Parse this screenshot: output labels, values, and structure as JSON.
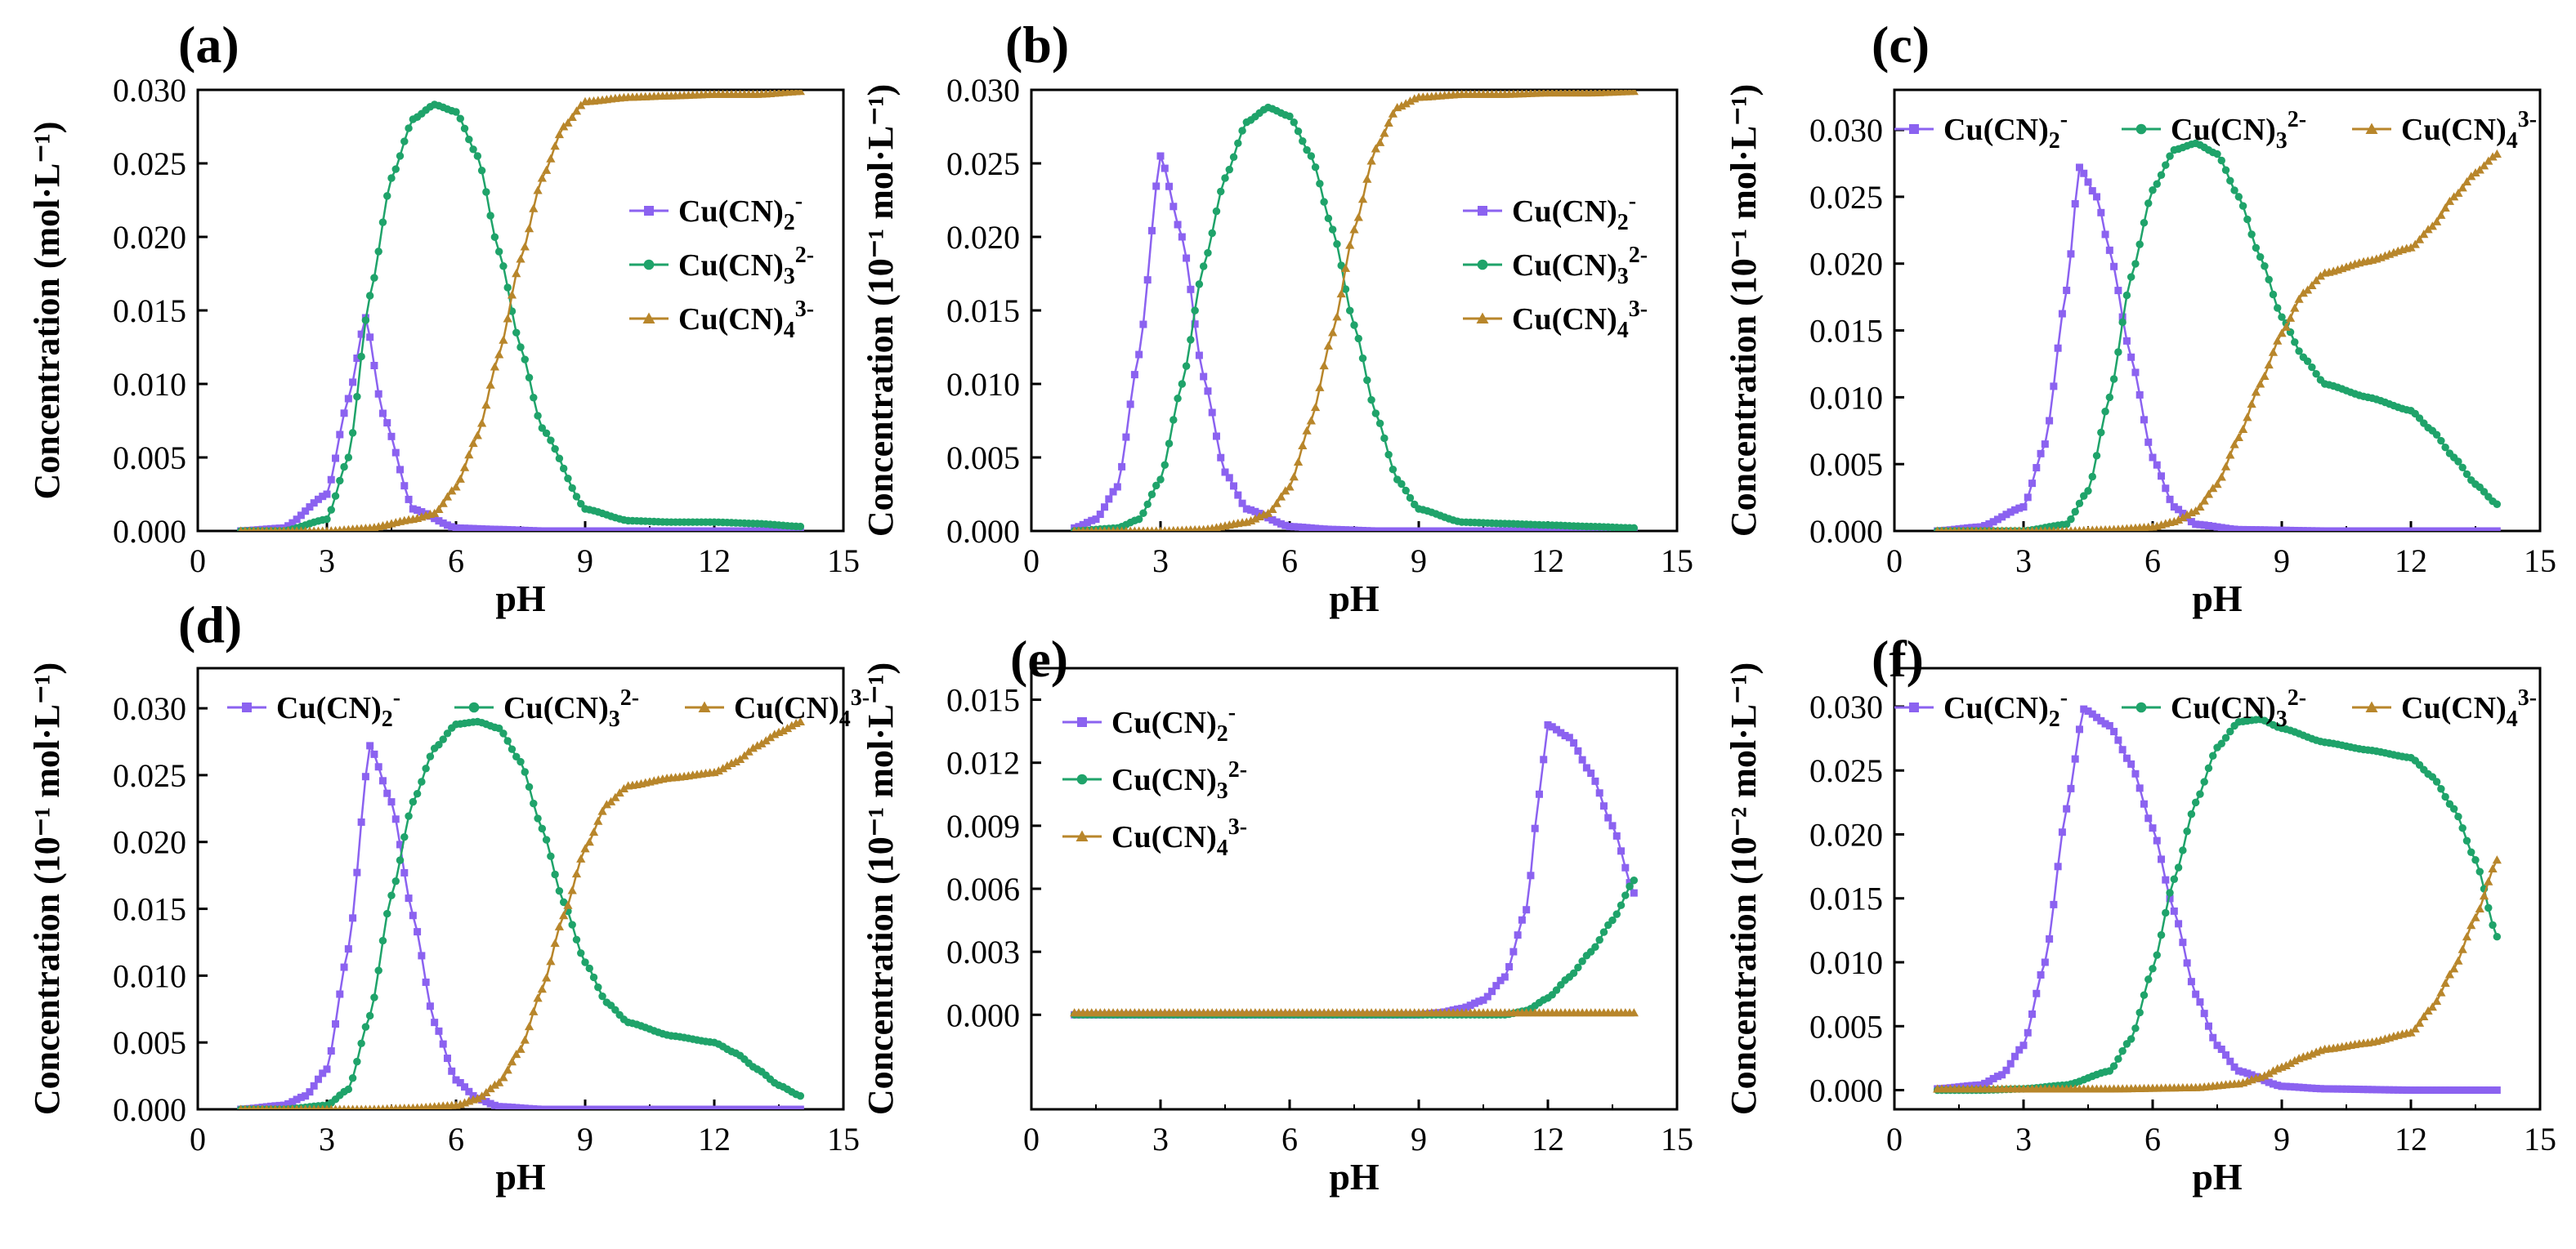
{
  "figure": {
    "xlabel": "pH",
    "x_ticks": [
      0,
      3,
      6,
      9,
      12,
      15
    ],
    "legend_labels": [
      {
        "base": "Cu(CN)",
        "sub": "2",
        "sup": "-"
      },
      {
        "base": "Cu(CN)",
        "sub": "3",
        "sup": "2-"
      },
      {
        "base": "Cu(CN)",
        "sub": "4",
        "sup": "3-"
      }
    ],
    "colors": {
      "cu2": "#8b62f0",
      "cu3": "#1fa36a",
      "cu4": "#b8862b"
    }
  },
  "chart_data": [
    {
      "type": "line",
      "panel_label": "(a)",
      "ylabel": "Concentration (mol·L⁻¹)",
      "xlim": [
        0,
        15
      ],
      "ylim": [
        0,
        0.03
      ],
      "y_ticks": [
        "0.000",
        "0.005",
        "0.010",
        "0.015",
        "0.020",
        "0.025",
        "0.030"
      ],
      "legend_position": "center-right",
      "series": [
        {
          "name": "Cu(CN)2-",
          "marker": "square",
          "x": [
            1,
            2,
            3,
            3.5,
            3.9,
            4.3,
            5,
            6,
            7,
            8,
            9,
            10,
            11,
            12,
            13,
            14
          ],
          "y": [
            0.0,
            0.0002,
            0.0025,
            0.009,
            0.0145,
            0.008,
            0.0015,
            0.0002,
            0.0001,
            0,
            0,
            0,
            0,
            0,
            0,
            0
          ]
        },
        {
          "name": "Cu(CN)3 2-",
          "marker": "circle",
          "x": [
            1,
            2,
            3,
            3.5,
            4,
            4.5,
            5,
            5.5,
            6,
            6.5,
            7,
            7.5,
            8,
            9,
            10,
            11,
            12,
            13,
            14
          ],
          "y": [
            0,
            0,
            0.0008,
            0.005,
            0.016,
            0.024,
            0.028,
            0.029,
            0.0285,
            0.0255,
            0.019,
            0.0125,
            0.007,
            0.0015,
            0.0007,
            0.0006,
            0.0006,
            0.0005,
            0.0003
          ]
        },
        {
          "name": "Cu(CN)4 3-",
          "marker": "triangle",
          "x": [
            1,
            2,
            3,
            4,
            5,
            5.5,
            6,
            6.5,
            7,
            7.5,
            8,
            8.5,
            9,
            10,
            11,
            12,
            13,
            14
          ],
          "y": [
            0,
            0,
            0,
            0.0002,
            0.0008,
            0.0012,
            0.003,
            0.0065,
            0.012,
            0.0185,
            0.024,
            0.0275,
            0.0292,
            0.0295,
            0.0296,
            0.0297,
            0.0297,
            0.0299
          ]
        }
      ]
    },
    {
      "type": "line",
      "panel_label": "(b)",
      "ylabel": "Concentration (10⁻¹ mol·L⁻¹)",
      "xlim": [
        0,
        15
      ],
      "ylim": [
        0,
        0.03
      ],
      "y_ticks": [
        "0.000",
        "0.005",
        "0.010",
        "0.015",
        "0.020",
        "0.025",
        "0.030"
      ],
      "legend_position": "center-right",
      "series": [
        {
          "name": "Cu(CN)2-",
          "marker": "square",
          "x": [
            1,
            1.5,
            2,
            2.5,
            3,
            3.5,
            4,
            4.5,
            5,
            6,
            7,
            8,
            10,
            12,
            14
          ],
          "y": [
            0.0002,
            0.0008,
            0.003,
            0.012,
            0.0255,
            0.02,
            0.0105,
            0.004,
            0.0015,
            0.0003,
            0.0001,
            0,
            0,
            0,
            0
          ]
        },
        {
          "name": "Cu(CN)3 2-",
          "marker": "circle",
          "x": [
            1,
            2,
            2.5,
            3,
            3.5,
            4,
            4.5,
            5,
            5.5,
            6,
            6.5,
            7,
            7.5,
            8,
            8.5,
            9,
            10,
            11,
            12,
            13,
            14
          ],
          "y": [
            0,
            0.0002,
            0.0008,
            0.0035,
            0.01,
            0.018,
            0.024,
            0.0278,
            0.0288,
            0.0282,
            0.0255,
            0.0205,
            0.014,
            0.008,
            0.0035,
            0.0015,
            0.0006,
            0.0005,
            0.0004,
            0.0003,
            0.0002
          ]
        },
        {
          "name": "Cu(CN)4 3-",
          "marker": "triangle",
          "x": [
            1,
            2,
            3,
            4,
            5,
            5.5,
            6,
            6.5,
            7,
            7.5,
            8,
            8.5,
            9,
            10,
            11,
            12,
            13,
            14
          ],
          "y": [
            0,
            0,
            0,
            0.0001,
            0.0006,
            0.0012,
            0.003,
            0.0075,
            0.0135,
            0.0205,
            0.026,
            0.0288,
            0.0295,
            0.0297,
            0.0297,
            0.0298,
            0.0298,
            0.0299
          ]
        }
      ]
    },
    {
      "type": "line",
      "panel_label": "(c)",
      "ylabel": "Concentration (10⁻¹ mol·L⁻¹)",
      "xlim": [
        0,
        15
      ],
      "ylim": [
        0,
        0.033
      ],
      "y_ticks": [
        "0.000",
        "0.005",
        "0.010",
        "0.015",
        "0.020",
        "0.025",
        "0.030"
      ],
      "legend_position": "top",
      "series": [
        {
          "name": "Cu(CN)2-",
          "marker": "square",
          "x": [
            1,
            2,
            3,
            3.5,
            4,
            4.3,
            4.7,
            5,
            5.5,
            6,
            6.5,
            7,
            8,
            10,
            12,
            14
          ],
          "y": [
            0,
            0.0003,
            0.0018,
            0.0065,
            0.018,
            0.0272,
            0.025,
            0.021,
            0.013,
            0.0055,
            0.0018,
            0.0005,
            0.0001,
            0,
            0,
            0
          ]
        },
        {
          "name": "Cu(CN)3 2-",
          "marker": "circle",
          "x": [
            1,
            2,
            3,
            4,
            4.5,
            5,
            5.5,
            6,
            6.5,
            7,
            7.5,
            8,
            8.5,
            9,
            9.5,
            10,
            11,
            12,
            12.5,
            13,
            13.5,
            14
          ],
          "y": [
            0,
            0,
            0,
            0.0005,
            0.003,
            0.01,
            0.019,
            0.0255,
            0.0285,
            0.029,
            0.0282,
            0.025,
            0.0205,
            0.016,
            0.013,
            0.011,
            0.01,
            0.009,
            0.0075,
            0.0055,
            0.0035,
            0.002
          ]
        },
        {
          "name": "Cu(CN)4 3-",
          "marker": "triangle",
          "x": [
            1,
            2,
            3,
            4,
            5,
            6,
            6.5,
            7,
            7.5,
            8,
            8.5,
            9,
            9.5,
            10,
            11,
            12,
            12.5,
            13,
            13.5,
            14
          ],
          "y": [
            0,
            0,
            0,
            0,
            0.0001,
            0.0003,
            0.0007,
            0.0015,
            0.0035,
            0.007,
            0.011,
            0.0148,
            0.0178,
            0.0193,
            0.0202,
            0.0212,
            0.0228,
            0.025,
            0.0268,
            0.0282
          ]
        }
      ]
    },
    {
      "type": "line",
      "panel_label": "(d)",
      "ylabel": "Concentration (10⁻¹ mol·L⁻¹)",
      "xlim": [
        0,
        15
      ],
      "ylim": [
        0,
        0.033
      ],
      "y_ticks": [
        "0.000",
        "0.005",
        "0.010",
        "0.015",
        "0.020",
        "0.025",
        "0.030"
      ],
      "legend_position": "top",
      "series": [
        {
          "name": "Cu(CN)2-",
          "marker": "square",
          "x": [
            1,
            2,
            2.5,
            3,
            3.5,
            4,
            4.5,
            5,
            5.5,
            6,
            6.5,
            7,
            8,
            10,
            12,
            14
          ],
          "y": [
            0,
            0.0003,
            0.001,
            0.003,
            0.012,
            0.0272,
            0.023,
            0.0145,
            0.0065,
            0.0022,
            0.0008,
            0.0002,
            0,
            0,
            0,
            0
          ]
        },
        {
          "name": "Cu(CN)3 2-",
          "marker": "circle",
          "x": [
            1,
            2,
            3,
            3.5,
            4,
            4.5,
            5,
            5.5,
            6,
            6.5,
            7,
            7.5,
            8,
            8.5,
            9,
            9.5,
            10,
            11,
            12,
            12.5,
            13,
            13.5,
            14
          ],
          "y": [
            0,
            0,
            0.0003,
            0.0015,
            0.007,
            0.016,
            0.023,
            0.027,
            0.0288,
            0.029,
            0.0285,
            0.026,
            0.021,
            0.0155,
            0.011,
            0.008,
            0.0065,
            0.0055,
            0.005,
            0.0042,
            0.003,
            0.0018,
            0.001
          ]
        },
        {
          "name": "Cu(CN)4 3-",
          "marker": "triangle",
          "x": [
            1,
            2,
            3,
            4,
            5,
            6,
            6.5,
            7,
            7.5,
            8,
            8.5,
            9,
            9.5,
            10,
            11,
            12,
            12.5,
            13,
            13.5,
            14
          ],
          "y": [
            0,
            0,
            0,
            0,
            0.0001,
            0.0003,
            0.0008,
            0.002,
            0.0045,
            0.009,
            0.0145,
            0.0195,
            0.0228,
            0.0242,
            0.0248,
            0.0252,
            0.026,
            0.0272,
            0.0282,
            0.029
          ]
        }
      ]
    },
    {
      "type": "line",
      "panel_label": "(e)",
      "ylabel": "Concentration (10⁻¹ mol·L⁻¹)",
      "xlim": [
        0,
        15
      ],
      "ylim": [
        -0.0045,
        0.0165
      ],
      "y_ticks": [
        "0.000",
        "0.003",
        "0.006",
        "0.009",
        "0.012",
        "0.015"
      ],
      "legend_position": "top-left",
      "series": [
        {
          "name": "Cu(CN)2-",
          "marker": "square",
          "x": [
            1,
            3,
            6,
            9,
            9.5,
            10,
            10.5,
            11,
            11.5,
            11.8,
            12,
            12.5,
            13,
            13.5,
            14
          ],
          "y": [
            0,
            0,
            0,
            0,
            0.0001,
            0.0003,
            0.0007,
            0.0018,
            0.005,
            0.0105,
            0.0138,
            0.0132,
            0.0115,
            0.009,
            0.0058
          ]
        },
        {
          "name": "Cu(CN)3 2-",
          "marker": "circle",
          "x": [
            1,
            3,
            6,
            9,
            11,
            11.5,
            12,
            12.5,
            13,
            13.5,
            14
          ],
          "y": [
            0,
            0,
            0,
            0,
            0,
            0.0002,
            0.0008,
            0.0018,
            0.003,
            0.0045,
            0.0064
          ]
        },
        {
          "name": "Cu(CN)4 3-",
          "marker": "triangle",
          "x": [
            1,
            3,
            6,
            9,
            12,
            14
          ],
          "y": [
            0.0001,
            0.0001,
            0.0001,
            0.0001,
            0.0001,
            0.0001
          ]
        }
      ]
    },
    {
      "type": "line",
      "panel_label": "(f)",
      "ylabel": "Concentration (10⁻² mol·L⁻¹)",
      "xlim": [
        0,
        15
      ],
      "ylim": [
        -0.0015,
        0.033
      ],
      "y_ticks": [
        "0.000",
        "0.005",
        "0.010",
        "0.015",
        "0.020",
        "0.025",
        "0.030"
      ],
      "legend_position": "top",
      "series": [
        {
          "name": "Cu(CN)2-",
          "marker": "square",
          "x": [
            1,
            2,
            2.5,
            3,
            3.5,
            4,
            4.4,
            5,
            5.5,
            6,
            6.5,
            7,
            7.5,
            8,
            9,
            10,
            12,
            14
          ],
          "y": [
            0.0001,
            0.0004,
            0.0012,
            0.0035,
            0.01,
            0.022,
            0.0298,
            0.0285,
            0.0255,
            0.0205,
            0.014,
            0.0075,
            0.0035,
            0.0015,
            0.0003,
            0.0001,
            0,
            0
          ]
        },
        {
          "name": "Cu(CN)3 2-",
          "marker": "circle",
          "x": [
            1,
            2,
            3,
            4,
            5,
            5.5,
            6,
            6.5,
            7,
            7.5,
            8,
            8.5,
            9,
            10,
            11,
            12,
            12.5,
            13,
            13.5,
            14
          ],
          "y": [
            0,
            0,
            0.0001,
            0.0004,
            0.0015,
            0.004,
            0.0095,
            0.0165,
            0.0225,
            0.0268,
            0.0288,
            0.029,
            0.0283,
            0.0272,
            0.0266,
            0.026,
            0.0245,
            0.022,
            0.018,
            0.012
          ]
        },
        {
          "name": "Cu(CN)4 3-",
          "marker": "triangle",
          "x": [
            1,
            3,
            5,
            7,
            8,
            8.5,
            9,
            9.5,
            10,
            11,
            12,
            12.5,
            13,
            13.5,
            14
          ],
          "y": [
            0.0001,
            0.0001,
            0.0001,
            0.0002,
            0.0005,
            0.001,
            0.0018,
            0.0026,
            0.0032,
            0.0037,
            0.0045,
            0.0065,
            0.0095,
            0.0135,
            0.018
          ]
        }
      ]
    }
  ]
}
